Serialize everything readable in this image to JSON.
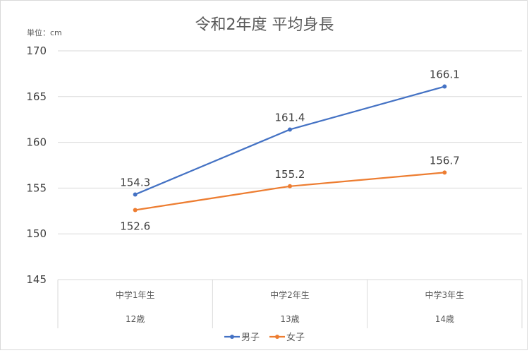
{
  "chart_data": {
    "type": "line",
    "title": "令和2年度 平均身長",
    "unit_label": "単位：cm",
    "categories": [
      {
        "top": "中学1年生",
        "bottom": "12歳"
      },
      {
        "top": "中学2年生",
        "bottom": "13歳"
      },
      {
        "top": "中学3年生",
        "bottom": "14歳"
      }
    ],
    "ylim": [
      145,
      170
    ],
    "yticks": [
      145,
      150,
      155,
      160,
      165,
      170
    ],
    "grid": true,
    "legend_position": "bottom",
    "series": [
      {
        "name": "男子",
        "color": "#4472C4",
        "values": [
          154.3,
          161.4,
          166.1
        ],
        "label_position": [
          "above",
          "above",
          "above"
        ]
      },
      {
        "name": "女子",
        "color": "#ED7D31",
        "values": [
          152.6,
          155.2,
          156.7
        ],
        "label_position": [
          "below",
          "above",
          "above"
        ]
      }
    ]
  }
}
